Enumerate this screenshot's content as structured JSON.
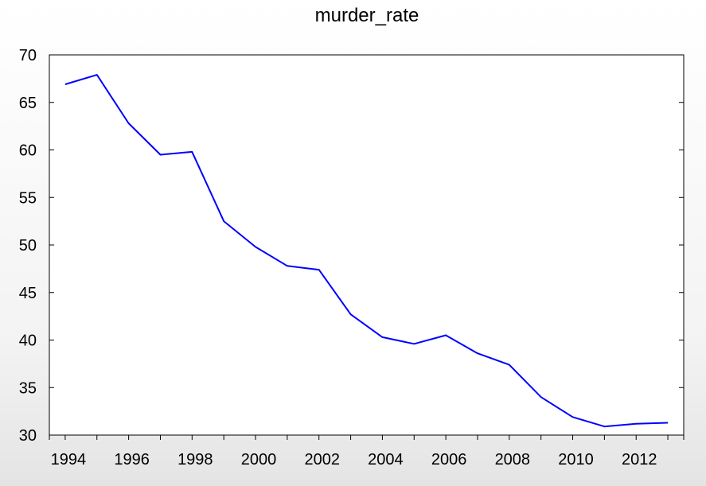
{
  "chart_data": {
    "type": "line",
    "title": "murder_rate",
    "xlabel": "",
    "ylabel": "",
    "xlim": [
      1993.5,
      2013.5
    ],
    "ylim": [
      30,
      70
    ],
    "x_ticks": [
      "1994",
      "1996",
      "1998",
      "2000",
      "2002",
      "2004",
      "2006",
      "2008",
      "2010",
      "2012"
    ],
    "y_ticks": [
      "30",
      "35",
      "40",
      "45",
      "50",
      "55",
      "60",
      "65",
      "70"
    ],
    "grid": false,
    "legend": "none",
    "series": [
      {
        "color": "#0000ff",
        "x": [
          1994,
          1995,
          1996,
          1997,
          1998,
          1999,
          2000,
          2001,
          2002,
          2003,
          2004,
          2005,
          2006,
          2007,
          2008,
          2009,
          2010,
          2011,
          2012,
          2013
        ],
        "values": [
          66.9,
          67.9,
          62.8,
          59.5,
          59.8,
          52.5,
          49.8,
          47.8,
          47.4,
          42.7,
          40.3,
          39.6,
          40.5,
          38.6,
          37.4,
          34.0,
          31.9,
          30.9,
          31.2,
          31.3
        ]
      }
    ]
  }
}
